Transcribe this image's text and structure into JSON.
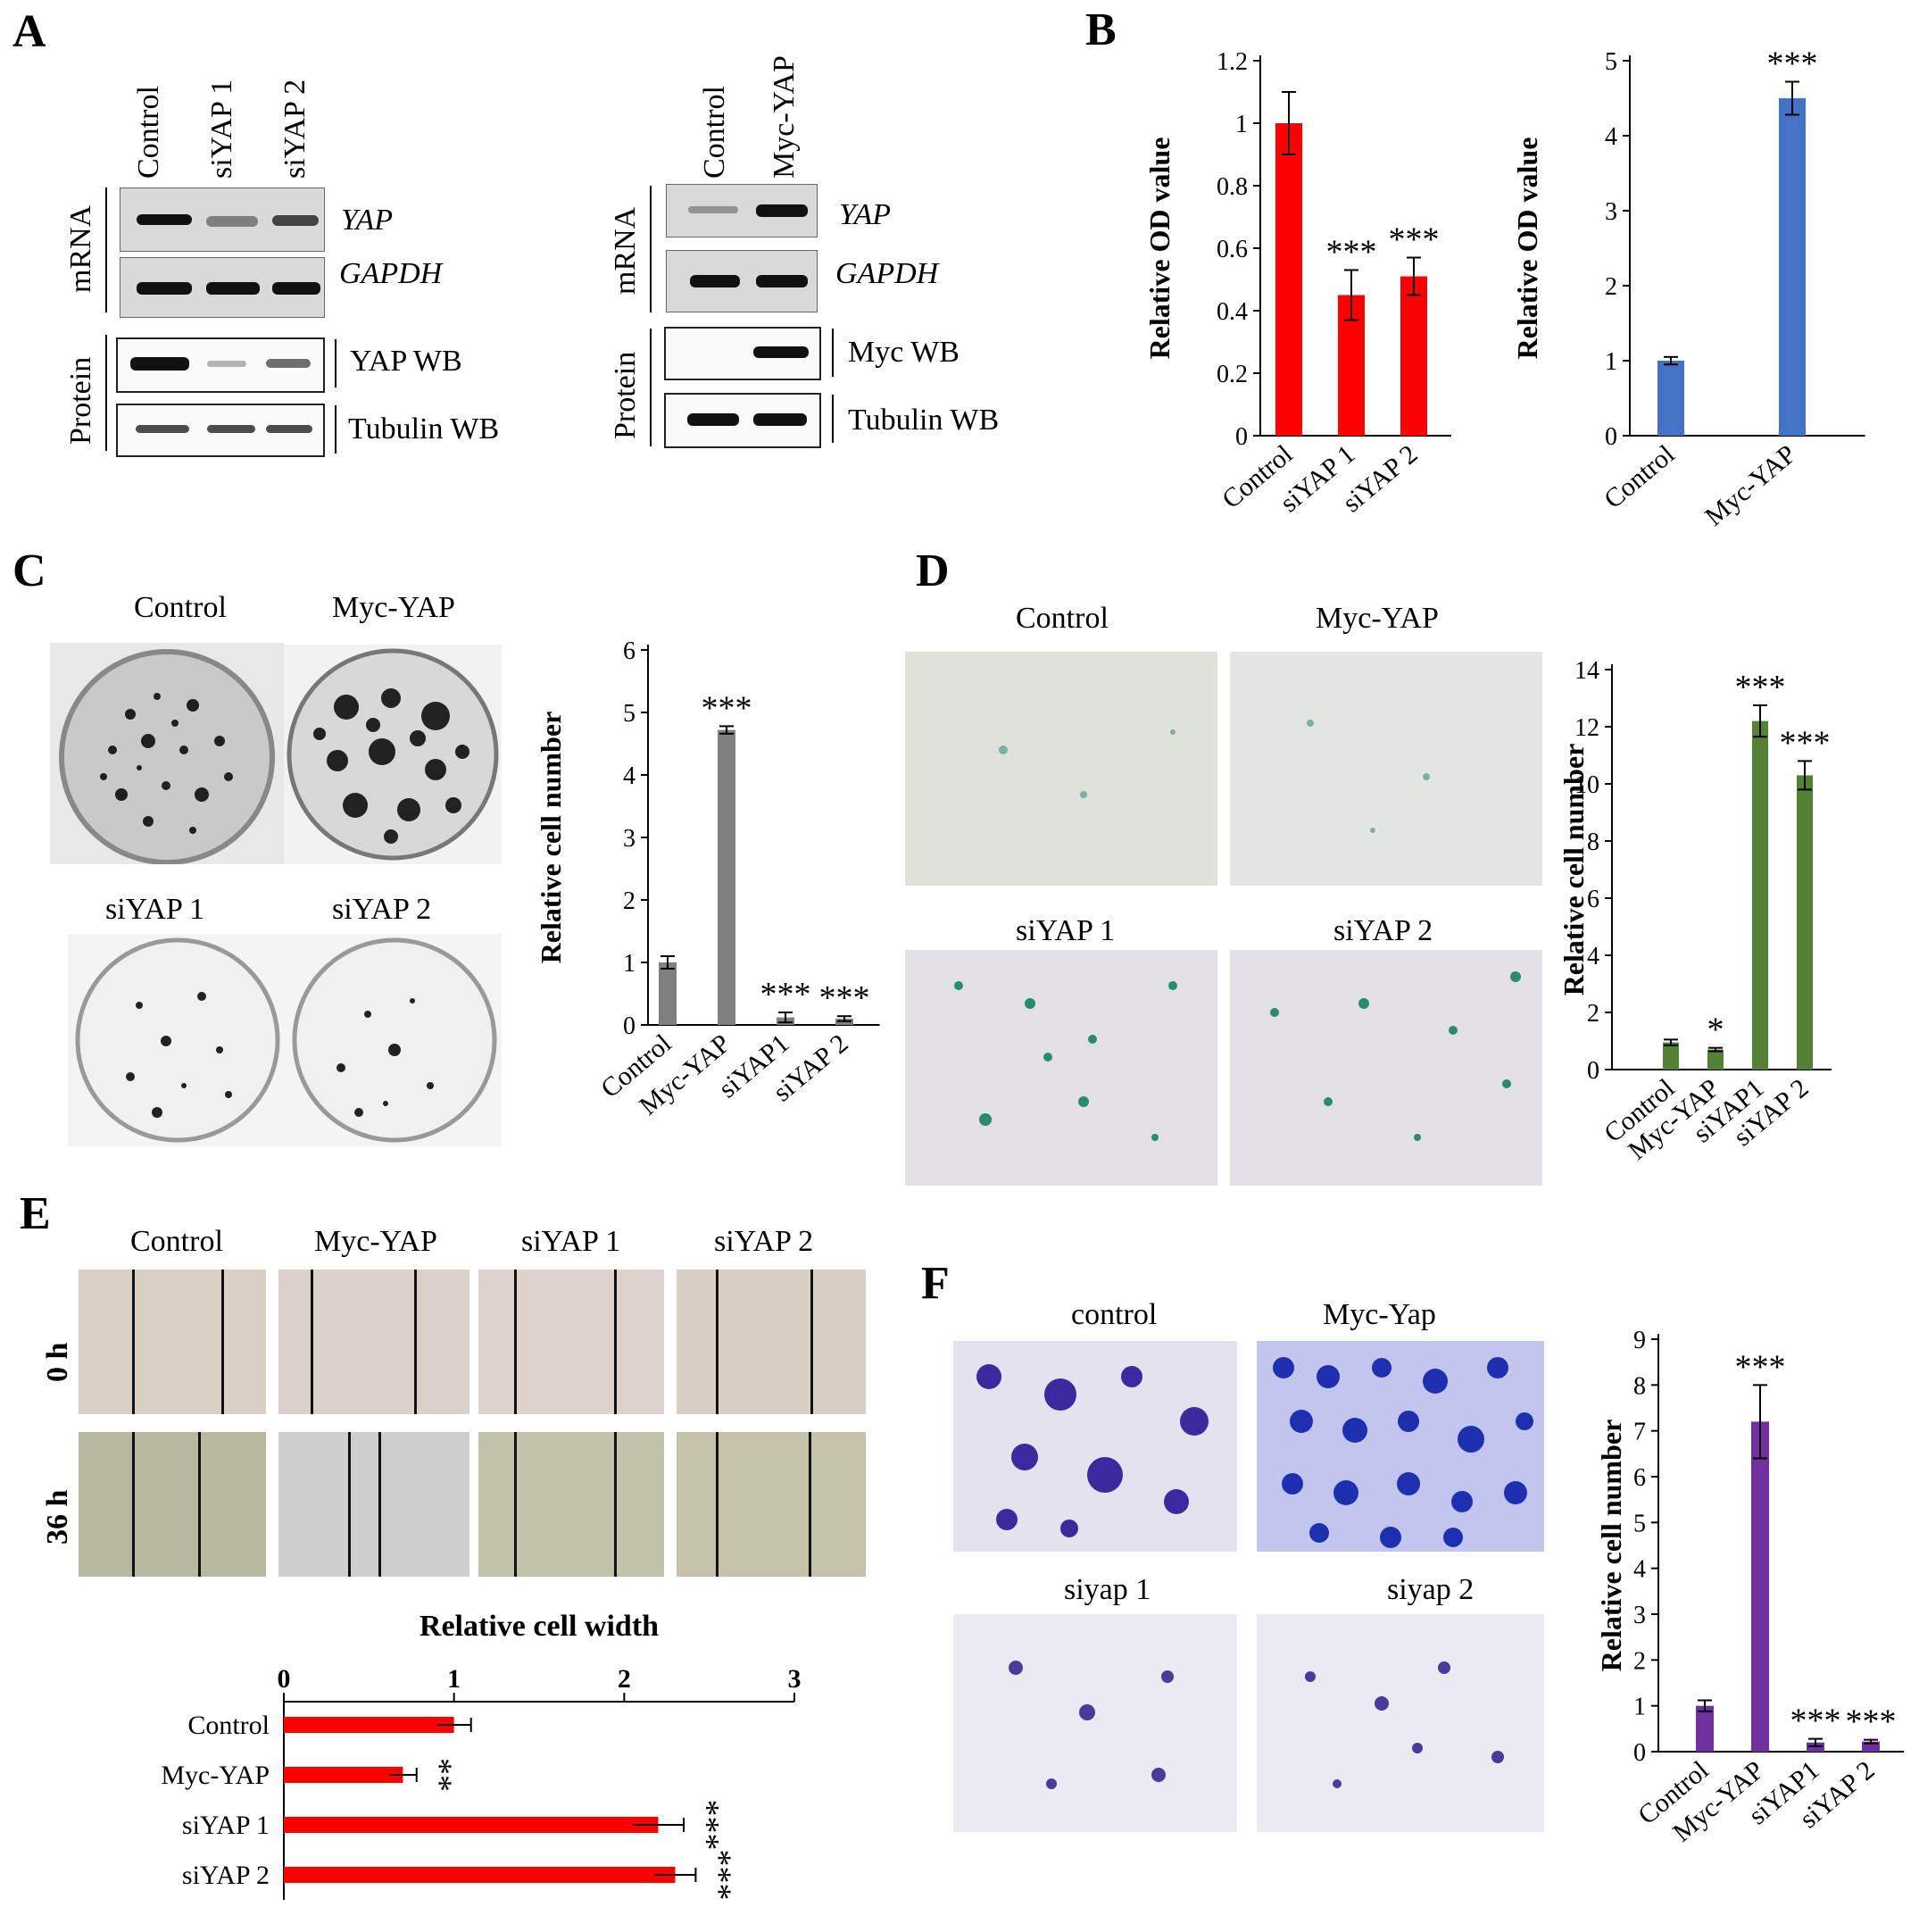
{
  "panel_labels": {
    "A": "A",
    "B": "B",
    "C": "C",
    "D": "D",
    "E": "E",
    "F": "F"
  },
  "panelA": {
    "left_lanes": [
      "Control",
      "siYAP 1",
      "siYAP 2"
    ],
    "right_lanes": [
      "Control",
      "Myc-YAP"
    ],
    "group_mrna": "mRNA",
    "group_protein": "Protein",
    "rows": {
      "yap_mrna": "YAP",
      "gapdh": "GAPDH",
      "yap_wb": "YAP WB",
      "myc_wb": "Myc WB",
      "tubulin_wb": "Tubulin WB"
    }
  },
  "panelC": {
    "images": [
      "Control",
      "Myc-YAP",
      "siYAP 1",
      "siYAP 2"
    ]
  },
  "panelD": {
    "images": [
      "Control",
      "Myc-YAP",
      "siYAP 1",
      "siYAP 2"
    ]
  },
  "panelE": {
    "columns": [
      "Control",
      "Myc-YAP",
      "siYAP 1",
      "siYAP 2"
    ],
    "rows": [
      "0 h",
      "36 h"
    ]
  },
  "panelF": {
    "images": [
      "control",
      "Myc-Yap",
      "siyap 1",
      "siyap 2"
    ]
  },
  "colors": {
    "red": "#ff0000",
    "blue": "#4472c4",
    "gray": "#808080",
    "green": "#538135",
    "purple": "#7030a0"
  },
  "chart_data": [
    {
      "id": "B1",
      "type": "bar",
      "categories": [
        "Control",
        "siYAP 1",
        "siYAP 2"
      ],
      "values": [
        1.0,
        0.45,
        0.51
      ],
      "errors": [
        0.1,
        0.08,
        0.06
      ],
      "significance": [
        "",
        "***",
        "***"
      ],
      "ylabel": "Relative OD value",
      "ylim": [
        0,
        1.2
      ],
      "yticks": [
        "0",
        "0.2",
        "0.4",
        "0.6",
        "0.8",
        "1",
        "1.2"
      ],
      "color": "#ff0000"
    },
    {
      "id": "B2",
      "type": "bar",
      "categories": [
        "Control",
        "Myc-YAP"
      ],
      "values": [
        1.0,
        4.5
      ],
      "errors": [
        0.05,
        0.22
      ],
      "significance": [
        "",
        "***"
      ],
      "ylabel": "Relative OD value",
      "ylim": [
        0,
        5
      ],
      "yticks": [
        "0",
        "1",
        "2",
        "3",
        "4",
        "5"
      ],
      "color": "#4472c4"
    },
    {
      "id": "C",
      "type": "bar",
      "categories": [
        "Control",
        "Myc-YAP",
        "siYAP1",
        "siYAP 2"
      ],
      "values": [
        1.0,
        4.72,
        0.12,
        0.1
      ],
      "errors": [
        0.1,
        0.06,
        0.08,
        0.04
      ],
      "significance": [
        "",
        "***",
        "***",
        "***"
      ],
      "ylabel": "Relative cell number",
      "ylim": [
        0,
        6
      ],
      "yticks": [
        "0",
        "1",
        "2",
        "3",
        "4",
        "5",
        "6"
      ],
      "color": "#808080"
    },
    {
      "id": "D",
      "type": "bar",
      "categories": [
        "Control",
        "Myc-YAP",
        "siYAP1",
        "siYAP 2"
      ],
      "values": [
        0.95,
        0.7,
        12.2,
        10.3
      ],
      "errors": [
        0.1,
        0.06,
        0.55,
        0.5
      ],
      "significance": [
        "",
        "*",
        "***",
        "***"
      ],
      "ylabel": "Relative cell number",
      "ylim": [
        0,
        14
      ],
      "yticks": [
        "0",
        "2",
        "4",
        "6",
        "8",
        "10",
        "12",
        "14"
      ],
      "color": "#538135"
    },
    {
      "id": "E",
      "type": "bar",
      "orientation": "horizontal",
      "categories": [
        "Control",
        "Myc-YAP",
        "siYAP 1",
        "siYAP 2"
      ],
      "values": [
        1.0,
        0.7,
        2.2,
        2.3
      ],
      "errors": [
        0.1,
        0.08,
        0.15,
        0.12
      ],
      "significance": [
        "",
        "**",
        "***",
        "***"
      ],
      "title": "Relative cell width",
      "xlim": [
        0,
        3
      ],
      "xticks": [
        "0",
        "1",
        "2",
        "3"
      ],
      "color": "#ff0000"
    },
    {
      "id": "F",
      "type": "bar",
      "categories": [
        "Control",
        "Myc-YAP",
        "siYAP1",
        "siYAP 2"
      ],
      "values": [
        1.0,
        7.2,
        0.2,
        0.22
      ],
      "errors": [
        0.12,
        0.8,
        0.08,
        0.04
      ],
      "significance": [
        "",
        "***",
        "***",
        "***"
      ],
      "ylabel": "Relative cell number",
      "ylim": [
        0,
        9
      ],
      "yticks": [
        "0",
        "1",
        "2",
        "3",
        "4",
        "5",
        "6",
        "7",
        "8",
        "9"
      ],
      "color": "#7030a0"
    }
  ]
}
